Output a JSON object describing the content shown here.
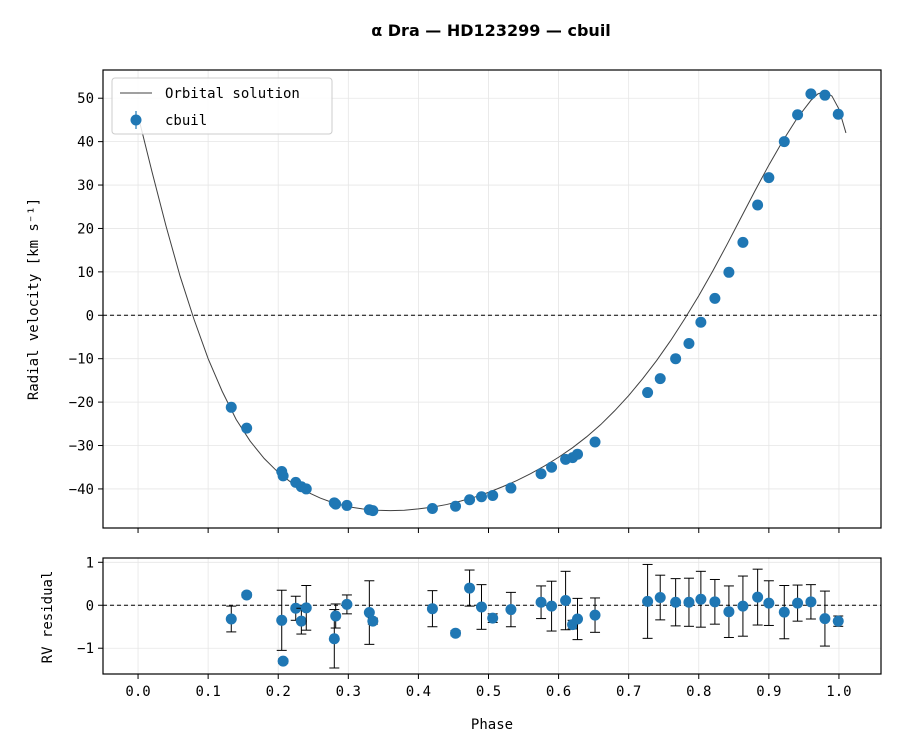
{
  "chart_data": [
    {
      "type": "scatter",
      "panel": "main",
      "title": "α  Dra  —  HD123299  —  cbuil",
      "xlabel": "",
      "ylabel": "Radial velocity [km s⁻¹]",
      "xlim": [
        -0.05,
        1.06
      ],
      "ylim": [
        -49,
        56.5
      ],
      "xticks": [
        0.0,
        0.1,
        0.2,
        0.3,
        0.4,
        0.5,
        0.6,
        0.7,
        0.8,
        0.9,
        1.0
      ],
      "yticks": [
        -40,
        -30,
        -20,
        -10,
        0,
        10,
        20,
        30,
        40,
        50
      ],
      "ytick_labels": [
        "−40",
        "−30",
        "−20",
        "−10",
        "0",
        "10",
        "20",
        "30",
        "40",
        "50"
      ],
      "grid": true,
      "zero_line": true,
      "legend": {
        "placement": "upper-left",
        "entries": [
          {
            "label": "Orbital solution",
            "kind": "line",
            "color": "#404040"
          },
          {
            "label": "cbuil",
            "kind": "marker",
            "color": "#1f77b4"
          }
        ]
      },
      "model_curve": {
        "name": "Orbital solution",
        "color": "#404040",
        "x": [
          0.0,
          0.02,
          0.04,
          0.06,
          0.08,
          0.1,
          0.12,
          0.14,
          0.16,
          0.18,
          0.2,
          0.22,
          0.24,
          0.26,
          0.28,
          0.3,
          0.32,
          0.34,
          0.36,
          0.38,
          0.4,
          0.42,
          0.44,
          0.46,
          0.48,
          0.5,
          0.52,
          0.54,
          0.56,
          0.58,
          0.6,
          0.62,
          0.64,
          0.66,
          0.68,
          0.7,
          0.72,
          0.74,
          0.76,
          0.78,
          0.8,
          0.82,
          0.84,
          0.86,
          0.88,
          0.9,
          0.92,
          0.94,
          0.96,
          0.97,
          0.98,
          0.99,
          1.0,
          1.01
        ],
        "y": [
          46.0,
          33.0,
          20.5,
          9.0,
          -1.0,
          -10.0,
          -17.5,
          -24.0,
          -29.0,
          -33.0,
          -36.2,
          -38.7,
          -40.6,
          -42.1,
          -43.3,
          -44.1,
          -44.6,
          -44.9,
          -45.0,
          -44.9,
          -44.6,
          -44.2,
          -43.6,
          -42.8,
          -41.9,
          -40.8,
          -39.5,
          -38.1,
          -36.5,
          -34.7,
          -32.7,
          -30.5,
          -28.0,
          -25.2,
          -22.0,
          -18.5,
          -14.6,
          -10.4,
          -5.8,
          -0.8,
          4.5,
          10.2,
          16.2,
          22.4,
          28.6,
          34.6,
          40.2,
          45.3,
          49.5,
          51.0,
          51.5,
          50.5,
          47.5,
          42.0
        ]
      },
      "series": [
        {
          "name": "cbuil",
          "color": "#1f77b4",
          "x": [
            0.133,
            0.155,
            0.205,
            0.207,
            0.225,
            0.233,
            0.24,
            0.28,
            0.282,
            0.298,
            0.33,
            0.335,
            0.42,
            0.453,
            0.473,
            0.49,
            0.506,
            0.532,
            0.575,
            0.59,
            0.61,
            0.62,
            0.627,
            0.652,
            0.727,
            0.745,
            0.767,
            0.786,
            0.803,
            0.823,
            0.843,
            0.863,
            0.884,
            0.9,
            0.922,
            0.941,
            0.96,
            0.98,
            0.999
          ],
          "y": [
            -21.2,
            -26.0,
            -36.0,
            -37.0,
            -38.5,
            -39.5,
            -40.0,
            -43.2,
            -43.5,
            -43.8,
            -44.8,
            -45.0,
            -44.5,
            -44.0,
            -42.5,
            -41.8,
            -41.5,
            -39.8,
            -36.5,
            -35.0,
            -33.2,
            -32.8,
            -32.0,
            -29.2,
            -17.8,
            -14.6,
            -10.0,
            -6.5,
            -1.6,
            3.9,
            9.9,
            16.8,
            25.4,
            31.7,
            40.0,
            46.2,
            51.0,
            50.7,
            46.3
          ]
        }
      ]
    },
    {
      "type": "scatter",
      "panel": "residuals",
      "xlabel": "Phase",
      "ylabel": "RV residual",
      "xlim": [
        -0.05,
        1.06
      ],
      "ylim": [
        -1.6,
        1.1
      ],
      "xticks": [
        0.0,
        0.1,
        0.2,
        0.3,
        0.4,
        0.5,
        0.6,
        0.7,
        0.8,
        0.9,
        1.0
      ],
      "xtick_labels": [
        "0.0",
        "0.1",
        "0.2",
        "0.3",
        "0.4",
        "0.5",
        "0.6",
        "0.7",
        "0.8",
        "0.9",
        "1.0"
      ],
      "yticks": [
        -1,
        0,
        1
      ],
      "ytick_labels": [
        "−1",
        "0",
        "1"
      ],
      "grid": true,
      "zero_line": true,
      "series": [
        {
          "name": "cbuil",
          "color": "#1f77b4",
          "x": [
            0.133,
            0.155,
            0.205,
            0.207,
            0.225,
            0.233,
            0.24,
            0.28,
            0.282,
            0.298,
            0.33,
            0.335,
            0.42,
            0.453,
            0.473,
            0.49,
            0.506,
            0.532,
            0.575,
            0.59,
            0.61,
            0.62,
            0.627,
            0.652,
            0.727,
            0.745,
            0.767,
            0.786,
            0.803,
            0.823,
            0.843,
            0.863,
            0.884,
            0.9,
            0.922,
            0.941,
            0.96,
            0.98,
            0.999
          ],
          "y": [
            -0.32,
            0.24,
            -0.35,
            -1.3,
            -0.07,
            -0.37,
            -0.06,
            -0.78,
            -0.25,
            0.02,
            -0.17,
            -0.37,
            -0.08,
            -0.65,
            0.4,
            -0.04,
            -0.3,
            -0.1,
            0.07,
            -0.02,
            0.11,
            -0.45,
            -0.32,
            -0.23,
            0.09,
            0.18,
            0.07,
            0.07,
            0.14,
            0.08,
            -0.15,
            -0.02,
            0.19,
            0.05,
            -0.16,
            0.05,
            0.08,
            -0.31,
            -0.37
          ],
          "err": [
            0.3,
            0.05,
            0.7,
            0.05,
            0.28,
            0.3,
            0.52,
            0.68,
            0.28,
            0.22,
            0.74,
            0.07,
            0.42,
            0.06,
            0.42,
            0.52,
            0.1,
            0.4,
            0.38,
            0.58,
            0.68,
            0.1,
            0.48,
            0.4,
            0.86,
            0.52,
            0.55,
            0.56,
            0.65,
            0.52,
            0.6,
            0.7,
            0.65,
            0.52,
            0.62,
            0.42,
            0.4,
            0.64,
            0.12
          ]
        }
      ]
    }
  ]
}
